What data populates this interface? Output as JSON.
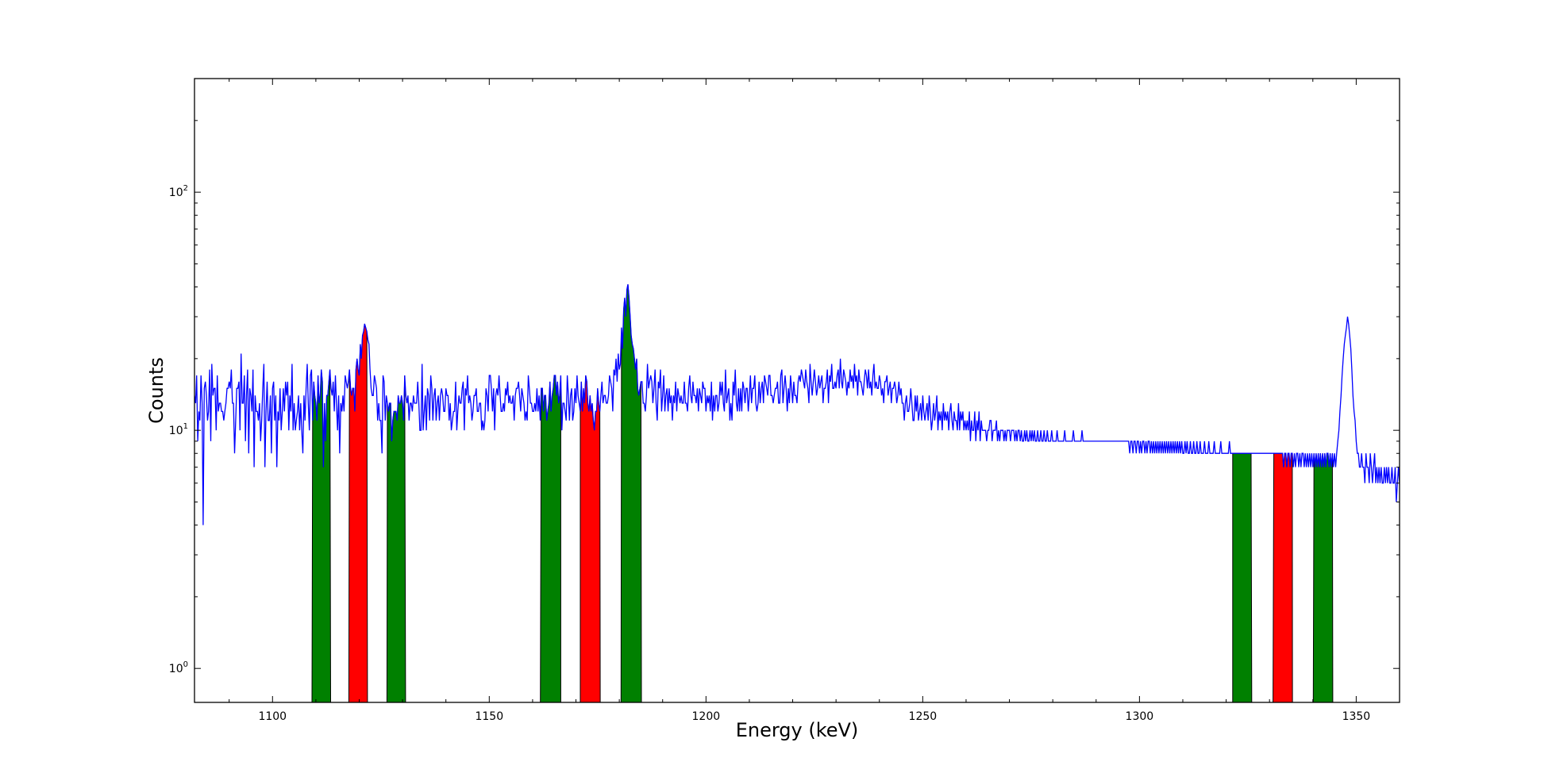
{
  "chart_data": {
    "type": "line",
    "title": "",
    "xlabel": "Energy (keV)",
    "ylabel": "Counts",
    "xlim": [
      1082,
      1360
    ],
    "ylim": [
      0.72,
      300
    ],
    "yscale": "log",
    "grid": false,
    "legend": "none",
    "x_ticks": [
      1100,
      1150,
      1200,
      1250,
      1300,
      1350
    ],
    "x_tick_labels": [
      "1100",
      "1150",
      "1200",
      "1250",
      "1300",
      "1350"
    ],
    "y_ticks": [
      1,
      10,
      100
    ],
    "y_tick_labels": [
      {
        "base": "10",
        "exp": "0"
      },
      {
        "base": "10",
        "exp": "1"
      },
      {
        "base": "10",
        "exp": "2"
      }
    ],
    "colors": {
      "spectrum": "#0000ff",
      "peak": "#ff0000",
      "background": "#008000",
      "axes": "#000000"
    },
    "spectrum": {
      "x_start": 1082,
      "x_step": 0.25,
      "counts": [
        14,
        13,
        17,
        9,
        12,
        11,
        17,
        13,
        4,
        15,
        16,
        14,
        11,
        12,
        18,
        9,
        19,
        14,
        15,
        15,
        10,
        17,
        12,
        13,
        13,
        12,
        12,
        11,
        12,
        13,
        15,
        15,
        16,
        15,
        18,
        13,
        13,
        8,
        11,
        15,
        15,
        16,
        10,
        21,
        13,
        13,
        17,
        9,
        14,
        18,
        8,
        15,
        14,
        12,
        18,
        7,
        14,
        12,
        12,
        11,
        13,
        9,
        11,
        15,
        19,
        7,
        12,
        16,
        11,
        11,
        14,
        8,
        15,
        16,
        11,
        14,
        7,
        12,
        11,
        15,
        10,
        12,
        15,
        12,
        16,
        14,
        16,
        10,
        14,
        12,
        19,
        10,
        13,
        10,
        11,
        12,
        14,
        10,
        13,
        10,
        8,
        14,
        11,
        15,
        19,
        13,
        10,
        17,
        18,
        11,
        16,
        14,
        13,
        11,
        17,
        13,
        14,
        18,
        16,
        7,
        13,
        9,
        14,
        14,
        16,
        18,
        15,
        14,
        16,
        12,
        17,
        13,
        10,
        14,
        8,
        13,
        12,
        14,
        12,
        17,
        16,
        15,
        16,
        18,
        15,
        14,
        15,
        15,
        12,
        18,
        20,
        18,
        17,
        23,
        20,
        25,
        26,
        28,
        27,
        26,
        24,
        23,
        18,
        15,
        14,
        14,
        17,
        16,
        15,
        11,
        13,
        11,
        11,
        8,
        17,
        16,
        11,
        14,
        13,
        12,
        13,
        13,
        9,
        11,
        12,
        12,
        12,
        11,
        14,
        13,
        13,
        14,
        13,
        11,
        17,
        14,
        13,
        14,
        11,
        13,
        13,
        12,
        14,
        13,
        13,
        13,
        16,
        13,
        10,
        10,
        19,
        10,
        12,
        14,
        10,
        15,
        14,
        11,
        17,
        15,
        11,
        14,
        15,
        11,
        13,
        14,
        11,
        14,
        15,
        14,
        12,
        12,
        15,
        14,
        14,
        11,
        13,
        10,
        11,
        12,
        12,
        16,
        10,
        12,
        14,
        13,
        13,
        15,
        16,
        10,
        15,
        14,
        17,
        13,
        14,
        13,
        11,
        12,
        14,
        14,
        15,
        12,
        12,
        13,
        13,
        10,
        11,
        10,
        11,
        15,
        14,
        12,
        17,
        17,
        15,
        12,
        15,
        10,
        14,
        15,
        14,
        17,
        14,
        12,
        12,
        13,
        12,
        15,
        14,
        16,
        13,
        14,
        13,
        13,
        14,
        11,
        14,
        15,
        15,
        16,
        14,
        12,
        15,
        14,
        13,
        11,
        12,
        11,
        17,
        15,
        13,
        13,
        12,
        12,
        13,
        12,
        15,
        12,
        14,
        11,
        15,
        15,
        12,
        14,
        14,
        11,
        12,
        13,
        16,
        12,
        14,
        15,
        17,
        17,
        14,
        16,
        13,
        14,
        17,
        10,
        13,
        13,
        12,
        11,
        17,
        14,
        11,
        14,
        15,
        11,
        12,
        15,
        13,
        17,
        14,
        13,
        12,
        16,
        12,
        15,
        13,
        17,
        16,
        13,
        12,
        14,
        12,
        13,
        11,
        10,
        12,
        12,
        15,
        13,
        12,
        14,
        16,
        13,
        14,
        14,
        13,
        13,
        14,
        17,
        16,
        15,
        12,
        18,
        17,
        20,
        16,
        21,
        18,
        19,
        27,
        22,
        32,
        36,
        30,
        39,
        41,
        36,
        30,
        25,
        23,
        22,
        20,
        18,
        20,
        15,
        14,
        15,
        16,
        16,
        13,
        13,
        12,
        14,
        19,
        15,
        16,
        17,
        16,
        13,
        15,
        18,
        13,
        11,
        16,
        15,
        18,
        12,
        14,
        17,
        12,
        14,
        15,
        12,
        15,
        13,
        14,
        11,
        14,
        13,
        16,
        12,
        15,
        14,
        13,
        14,
        13,
        13,
        16,
        13,
        13,
        12,
        15,
        17,
        14,
        13,
        16,
        14,
        14,
        13,
        15,
        12,
        15,
        14,
        13,
        16,
        15,
        15,
        12,
        14,
        13,
        14,
        12,
        16,
        11,
        14,
        12,
        14,
        14,
        12,
        13,
        16,
        14,
        16,
        13,
        12,
        18,
        13,
        14,
        15,
        11,
        13,
        11,
        16,
        14,
        18,
        13,
        12,
        15,
        12,
        15,
        12,
        16,
        15,
        13,
        15,
        15,
        12,
        14,
        17,
        13,
        15,
        15,
        17,
        13,
        12,
        13,
        16,
        13,
        15,
        16,
        13,
        17,
        16,
        15,
        14,
        17,
        17,
        14,
        14,
        13,
        14,
        15,
        15,
        16,
        13,
        13,
        17,
        18,
        13,
        15,
        17,
        15,
        12,
        15,
        13,
        17,
        15,
        13,
        16,
        14,
        14,
        13,
        16,
        17,
        16,
        18,
        17,
        16,
        15,
        18,
        16,
        15,
        13,
        19,
        16,
        14,
        16,
        18,
        16,
        14,
        15,
        17,
        15,
        16,
        17,
        13,
        15,
        15,
        16,
        18,
        13,
        17,
        16,
        19,
        15,
        15,
        16,
        15,
        17,
        18,
        15,
        20,
        16,
        15,
        18,
        17,
        16,
        14,
        16,
        15,
        18,
        16,
        17,
        15,
        19,
        16,
        17,
        14,
        18,
        16,
        16,
        15,
        14,
        16,
        18,
        17,
        15,
        18,
        15,
        16,
        14,
        17,
        19,
        15,
        16,
        15,
        15,
        17,
        16,
        14,
        15,
        13,
        16,
        16,
        17,
        14,
        15,
        16,
        13,
        15,
        15,
        16,
        15,
        13,
        14,
        16,
        14,
        15,
        13,
        13,
        11,
        13,
        14,
        12,
        12,
        13,
        15,
        13,
        11,
        11,
        14,
        12,
        14,
        11,
        12,
        13,
        11,
        14,
        12,
        11,
        12,
        13,
        11,
        14,
        12,
        10,
        11,
        13,
        11,
        12,
        14,
        10,
        12,
        11,
        12,
        10,
        13,
        11,
        12,
        11,
        12,
        10,
        12,
        13,
        11,
        10,
        12,
        11,
        11,
        10,
        13,
        10,
        12,
        11,
        12,
        10,
        11,
        10,
        11,
        10,
        12,
        9,
        11,
        10,
        10,
        12,
        9,
        11,
        10,
        12,
        9,
        11,
        10,
        10,
        10,
        10,
        9,
        10,
        10,
        11,
        11,
        9,
        10,
        10,
        10,
        11,
        9,
        10,
        9,
        10,
        10,
        10,
        9,
        10,
        9,
        10,
        10,
        10,
        9,
        10,
        10,
        10,
        9,
        10,
        9,
        10,
        10,
        9,
        10,
        9,
        9,
        10,
        9,
        10,
        9,
        9,
        10,
        9,
        10,
        9,
        10,
        9,
        9,
        10,
        9,
        9,
        10,
        9,
        9,
        10,
        9,
        9,
        10,
        9,
        9,
        9,
        10,
        9,
        9,
        9,
        9,
        10,
        9,
        9,
        9,
        9,
        9,
        9,
        10,
        9,
        9,
        9,
        9,
        9,
        9,
        9,
        10,
        9,
        9,
        9,
        9,
        9,
        9,
        9,
        10,
        9,
        9,
        9,
        9,
        9,
        9,
        9,
        9,
        9,
        9,
        9,
        9,
        9,
        9,
        9,
        9,
        9,
        9,
        9,
        9,
        9,
        9,
        9,
        9,
        9,
        9,
        9,
        9,
        9,
        9,
        9,
        9,
        9,
        9,
        9,
        9,
        9,
        9,
        9,
        9,
        9,
        9,
        9,
        8,
        9,
        9,
        8,
        9,
        9,
        8,
        9,
        9,
        8,
        9,
        8,
        9,
        9,
        8,
        9,
        8,
        9,
        9,
        8,
        9,
        8,
        9,
        8,
        9,
        8,
        9,
        8,
        9,
        8,
        9,
        8,
        9,
        8,
        9,
        8,
        9,
        8,
        9,
        8,
        9,
        8,
        9,
        8,
        9,
        8,
        9,
        8,
        9,
        8,
        8,
        9,
        8,
        9,
        8,
        8,
        9,
        8,
        8,
        9,
        8,
        8,
        9,
        8,
        8,
        9,
        8,
        8,
        8,
        9,
        8,
        8,
        8,
        9,
        8,
        8,
        8,
        8,
        9,
        8,
        8,
        8,
        8,
        8,
        9,
        8,
        8,
        8,
        8,
        8,
        8,
        8,
        9,
        8,
        8,
        8,
        8,
        8,
        8,
        8,
        8,
        8,
        8,
        8,
        8,
        8,
        8,
        8,
        8,
        8,
        8,
        8,
        8,
        8,
        8,
        8,
        8,
        8,
        8,
        8,
        8,
        8,
        8,
        8,
        8,
        8,
        8,
        8,
        8,
        8,
        8,
        8,
        8,
        8,
        8,
        8,
        8,
        8,
        8,
        8,
        8,
        8,
        7,
        8,
        8,
        7,
        8,
        8,
        7,
        8,
        8,
        7,
        8,
        7,
        8,
        8,
        7,
        8,
        7,
        8,
        8,
        7,
        8,
        7,
        8,
        7,
        8,
        7,
        8,
        7,
        8,
        7,
        8,
        7,
        8,
        7,
        8,
        7,
        8,
        7,
        8,
        7,
        8,
        8,
        7,
        8,
        7,
        8,
        7,
        8,
        7,
        8,
        9,
        10,
        12,
        14,
        17,
        20,
        23,
        25,
        27,
        30,
        28,
        25,
        22,
        18,
        14,
        12,
        11,
        9,
        8,
        8,
        7,
        7,
        8,
        7,
        7,
        6,
        8,
        7,
        7,
        6,
        8,
        7,
        6,
        7,
        8,
        6,
        7,
        6,
        7,
        6,
        7,
        6,
        6,
        7,
        6,
        7,
        6,
        7,
        6,
        6,
        7,
        6,
        6,
        7,
        5,
        6,
        7,
        6,
        5,
        6,
        7,
        5,
        6,
        6,
        5,
        7,
        6,
        5,
        6,
        6,
        5,
        6,
        5,
        6,
        5,
        6,
        5,
        6,
        5,
        6,
        5,
        6,
        5,
        6,
        5,
        6,
        5,
        6,
        5,
        6,
        6,
        5,
        6,
        5,
        6,
        5,
        6,
        5,
        6,
        5,
        6,
        5,
        6,
        5,
        6,
        5,
        6,
        5,
        6,
        5,
        6,
        5,
        6,
        5,
        6,
        5,
        6,
        5,
        6,
        5,
        6,
        5,
        5,
        6,
        5,
        6,
        5,
        6,
        5,
        6,
        5,
        6,
        5,
        5,
        6,
        5,
        6,
        5,
        5,
        6,
        5,
        5,
        6,
        5,
        5,
        6,
        5,
        5,
        6,
        5,
        5,
        5,
        5,
        6,
        5,
        5,
        5,
        5,
        5,
        5,
        5,
        5,
        5,
        5,
        5,
        5,
        5,
        5,
        5,
        5,
        5,
        5,
        5,
        5,
        5,
        5,
        5,
        5,
        5,
        5,
        5,
        5,
        5,
        5,
        5,
        5,
        5,
        5,
        5,
        5,
        5,
        5,
        5,
        5,
        5,
        5,
        5,
        5,
        5,
        5,
        5
      ]
    },
    "peak_regions": [
      {
        "x0": 1117.6,
        "x1": 1121.9
      },
      {
        "x0": 1171.0,
        "x1": 1175.6
      },
      {
        "x0": 1330.8,
        "x1": 1335.3
      }
    ],
    "background_regions": [
      {
        "x0": 1109.1,
        "x1": 1113.4
      },
      {
        "x0": 1126.4,
        "x1": 1130.7
      },
      {
        "x0": 1161.8,
        "x1": 1166.5
      },
      {
        "x0": 1180.4,
        "x1": 1185.1
      },
      {
        "x0": 1321.5,
        "x1": 1325.9
      },
      {
        "x0": 1340.1,
        "x1": 1344.6
      }
    ]
  }
}
